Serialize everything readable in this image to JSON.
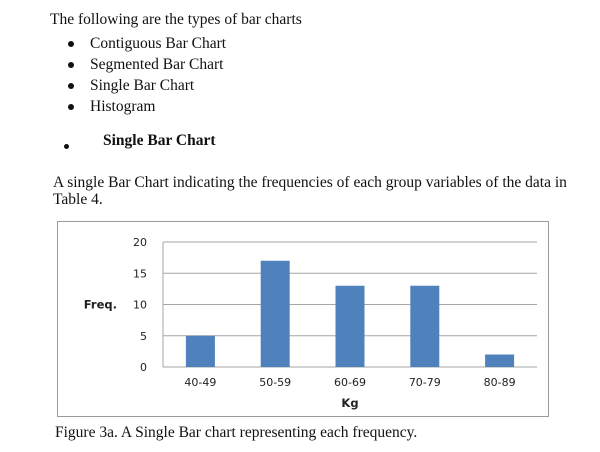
{
  "intro": "The following are the types of bar charts",
  "types": [
    "Contiguous Bar Chart",
    "Segmented Bar Chart",
    "Single Bar Chart",
    "Histogram"
  ],
  "section_heading": "Single Bar Chart",
  "paragraph": "A single Bar Chart indicating the frequencies of each group variables of the data in Table 4.",
  "caption": "Figure 3a. A Single Bar chart representing each frequency.",
  "chart_data": {
    "type": "bar",
    "categories": [
      "40-49",
      "50-59",
      "60-69",
      "70-79",
      "80-89"
    ],
    "values": [
      5,
      17,
      13,
      13,
      2
    ],
    "xlabel": "Kg",
    "ylabel": "Freq.",
    "ylim": [
      0,
      20
    ],
    "yticks": [
      0,
      5,
      10,
      15,
      20
    ],
    "grid": true,
    "bar_color": "#4f81bd",
    "gridline_color": "#a6a6a6"
  }
}
